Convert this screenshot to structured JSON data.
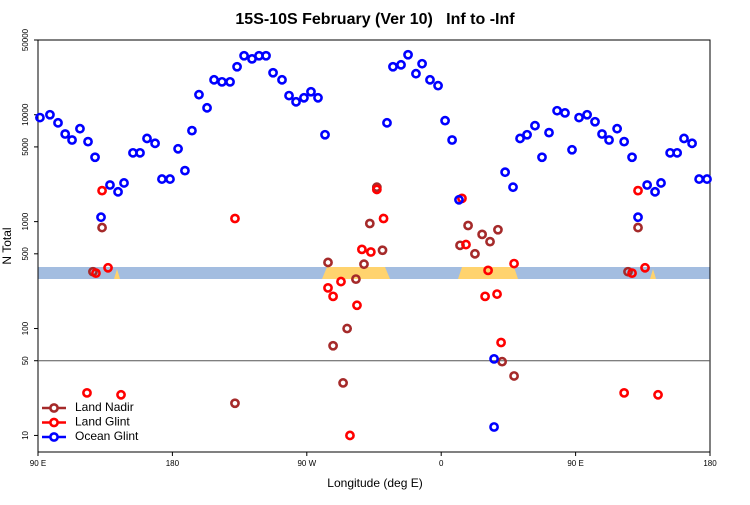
{
  "chart_data": {
    "type": "scatter",
    "title": "15S-10S February (Ver 10)   Inf to -Inf",
    "x_label": "Longitude (deg E)",
    "y_label": "N Total",
    "log_y": true,
    "xlim": [
      90,
      540
    ],
    "ylim": [
      7,
      50000
    ],
    "xticks": [
      {
        "value": 90,
        "label": "90 E"
      },
      180,
      {
        "value": 270,
        "label": "90 W"
      },
      {
        "value": 360,
        "label": "0"
      },
      {
        "value": 450,
        "label": "90 E"
      },
      {
        "value": 540,
        "label": "180"
      }
    ],
    "yticks": [
      10,
      50,
      100,
      500,
      1000,
      5000,
      10000,
      50000
    ],
    "reference_line": 50,
    "legend": "lower left",
    "series": [
      {
        "name": "Land Nadir",
        "color": "#a52a2a",
        "x": [
          132.9,
          126.8,
          221.9,
          284.2,
          302.9,
          308.3,
          297,
          287.6,
          294.3,
          312.2,
          316.9,
          320.7,
          372.6,
          378,
          382.6,
          387.4,
          392.7,
          398,
          400.8,
          408.8,
          485.1,
          491.8
        ],
        "values": [
          880,
          340,
          20,
          415,
          290,
          400,
          100,
          69,
          31,
          960,
          2100,
          540,
          600,
          920,
          500,
          760,
          650,
          840,
          49,
          36,
          340,
          880
        ]
      },
      {
        "name": "Land Glint",
        "color": "#ff0000",
        "x": [
          132.9,
          128.8,
          136.9,
          122.8,
          145.6,
          221.9,
          284.2,
          287.6,
          292.9,
          303.6,
          298.9,
          306.9,
          312.9,
          316.9,
          321.4,
          373.9,
          376.6,
          391.4,
          389.4,
          397.4,
          400.1,
          408.8,
          482.5,
          491.8,
          487.8,
          496.5,
          505.2
        ],
        "values": [
          1950,
          330,
          370,
          25,
          24,
          1070,
          240,
          200,
          275,
          165,
          10,
          550,
          520,
          2000,
          1070,
          1650,
          610,
          350,
          200,
          210,
          74,
          405,
          25,
          1950,
          330,
          370,
          24
        ]
      },
      {
        "name": "Ocean Glint",
        "color": "#0000ff",
        "x": [
          91.3,
          98,
          103.4,
          108.2,
          112.8,
          118.1,
          123.5,
          128.2,
          132.2,
          138.2,
          143.6,
          147.6,
          153.6,
          158.3,
          163,
          168.4,
          173,
          178.4,
          183.8,
          188.4,
          193.1,
          197.8,
          203.2,
          207.9,
          213.2,
          218.6,
          223.3,
          228,
          233.3,
          238,
          242.7,
          247.4,
          253.4,
          258.1,
          262.8,
          268.1,
          272.8,
          277.5,
          282.2,
          323.7,
          327.7,
          333.1,
          337.8,
          343.1,
          347.2,
          352.5,
          357.9,
          362.6,
          367.3,
          371.9,
          395.4,
          395.4,
          402.8,
          408.1,
          412.8,
          417.5,
          422.8,
          427.5,
          432.2,
          437.6,
          442.9,
          447.6,
          452.3,
          457.7,
          463,
          467.7,
          472.4,
          477.8,
          482.5,
          487.8,
          491.8,
          497.9,
          503.2,
          507.2,
          513.3,
          518,
          522.6,
          528,
          532.7,
          538
        ],
        "values": [
          9400,
          10000,
          8400,
          6600,
          5800,
          7400,
          5600,
          4000,
          1100,
          2200,
          1900,
          2300,
          4400,
          4400,
          6000,
          5400,
          2500,
          2500,
          4800,
          3000,
          7100,
          15400,
          11600,
          21200,
          20300,
          20300,
          28100,
          35600,
          33300,
          35600,
          35600,
          24700,
          21200,
          15100,
          13200,
          14400,
          16400,
          14400,
          6500,
          8400,
          28100,
          29300,
          36400,
          24200,
          30000,
          21200,
          18700,
          8800,
          5800,
          1600,
          52,
          12,
          2900,
          2100,
          6000,
          6500,
          7900,
          4000,
          6800,
          10900,
          10400,
          4700,
          9400,
          10000,
          8600,
          6600,
          5800,
          7400,
          5600,
          4000,
          1100,
          2200,
          1900,
          2300,
          4400,
          4400,
          6000,
          5400,
          2500,
          2500
        ]
      }
    ]
  }
}
